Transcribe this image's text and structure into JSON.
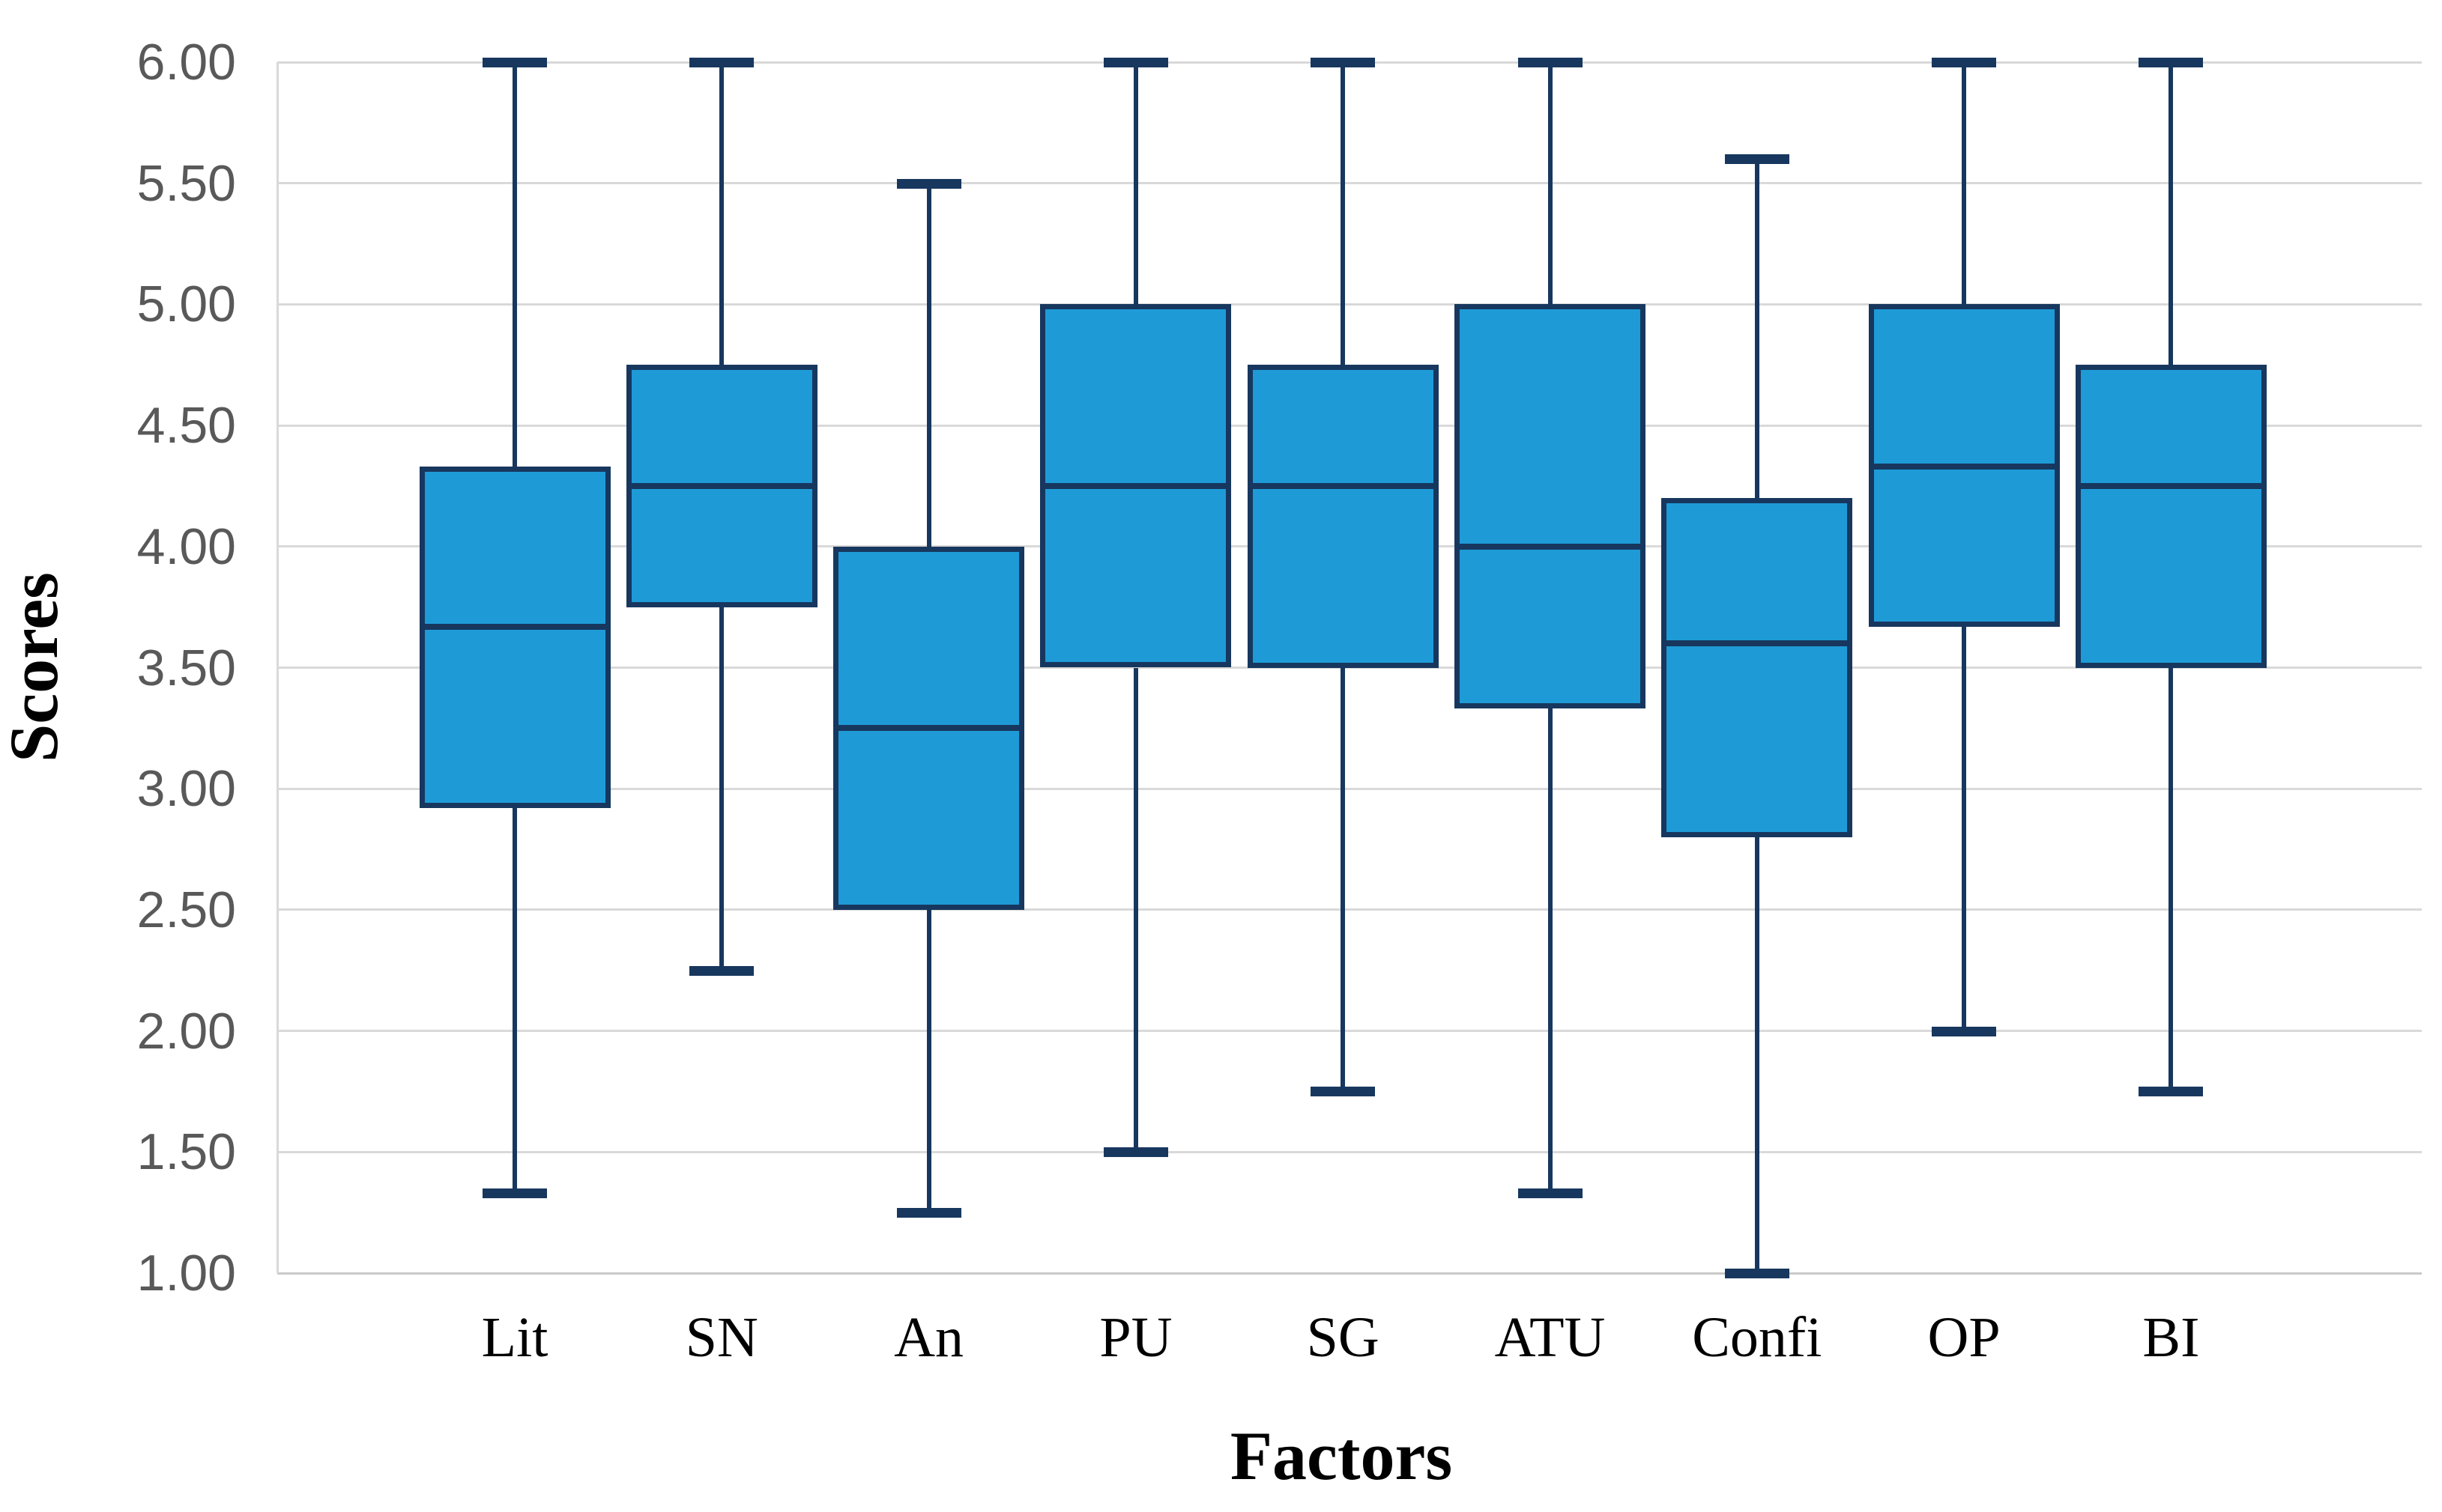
{
  "chart_data": {
    "type": "boxplot",
    "title": "",
    "xlabel": "Factors",
    "ylabel": "Scores",
    "categories": [
      "Lit",
      "SN",
      "An",
      "PU",
      "SG",
      "ATU",
      "Confi",
      "OP",
      "BI"
    ],
    "series": [
      {
        "name": "Lit",
        "whisker_low": 1.33,
        "q1": 2.92,
        "median": 3.67,
        "q3": 4.33,
        "whisker_high": 6.0
      },
      {
        "name": "SN",
        "whisker_low": 2.25,
        "q1": 3.75,
        "median": 4.25,
        "q3": 4.75,
        "whisker_high": 6.0
      },
      {
        "name": "An",
        "whisker_low": 1.25,
        "q1": 2.5,
        "median": 3.25,
        "q3": 4.0,
        "whisker_high": 5.5
      },
      {
        "name": "PU",
        "whisker_low": 1.5,
        "q1": 3.5,
        "median": 4.25,
        "q3": 5.0,
        "whisker_high": 6.0
      },
      {
        "name": "SG",
        "whisker_low": 1.75,
        "q1": 3.5,
        "median": 4.25,
        "q3": 4.75,
        "whisker_high": 6.0
      },
      {
        "name": "ATU",
        "whisker_low": 1.33,
        "q1": 3.33,
        "median": 4.0,
        "q3": 5.0,
        "whisker_high": 6.0
      },
      {
        "name": "Confi",
        "whisker_low": 1.0,
        "q1": 2.8,
        "median": 3.6,
        "q3": 4.2,
        "whisker_high": 5.6
      },
      {
        "name": "OP",
        "whisker_low": 2.0,
        "q1": 3.67,
        "median": 4.33,
        "q3": 5.0,
        "whisker_high": 6.0
      },
      {
        "name": "BI",
        "whisker_low": 1.75,
        "q1": 3.5,
        "median": 4.25,
        "q3": 4.75,
        "whisker_high": 6.0
      }
    ],
    "y_axis": {
      "min": 1.0,
      "max": 6.0,
      "step": 0.5,
      "tick_labels": [
        "1.00",
        "1.50",
        "2.00",
        "2.50",
        "3.00",
        "3.50",
        "4.00",
        "4.50",
        "5.00",
        "5.50",
        "6.00"
      ]
    },
    "grid": true,
    "legend": "none",
    "colors": {
      "box_fill": "#1E9BD7",
      "box_border": "#17375E",
      "whisker": "#17375E",
      "median_line": "#17375E",
      "gridline": "#D9D9D9",
      "axis_line": "#C9C9C9",
      "tick_text": "#595959",
      "label_text": "#000000"
    }
  }
}
